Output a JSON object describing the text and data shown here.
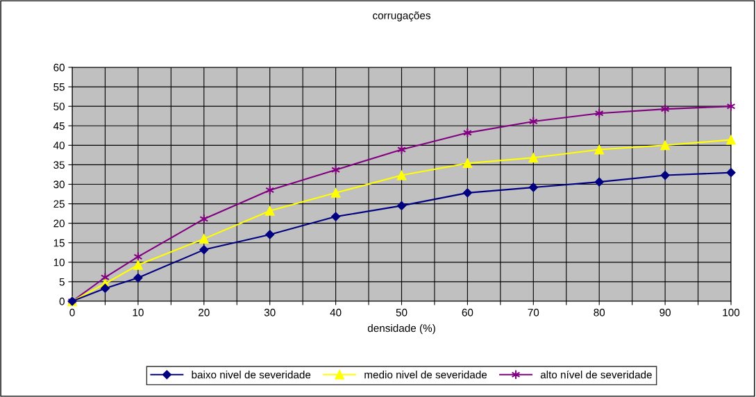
{
  "chart_data": {
    "type": "line",
    "title": "corrugações",
    "xlabel": "densidade (%)",
    "x": [
      0,
      5,
      10,
      20,
      30,
      40,
      50,
      60,
      70,
      80,
      90,
      100
    ],
    "series": [
      {
        "name": "baixo nivel de severidade",
        "color": "#000080",
        "marker": "diamond",
        "values": [
          0,
          3.3,
          6,
          13.2,
          17.1,
          21.7,
          24.5,
          27.8,
          29.2,
          30.6,
          32.3,
          33
        ]
      },
      {
        "name": "medio nivel de severidade",
        "color": "#ffff00",
        "marker": "triangle",
        "values": [
          0,
          4.5,
          9.3,
          16,
          23.2,
          27.8,
          32.3,
          35.4,
          36.8,
          38.9,
          40,
          41.4
        ]
      },
      {
        "name": "alto nível de severidade",
        "color": "#800080",
        "marker": "cross",
        "values": [
          0,
          6.1,
          11.4,
          21.1,
          28.5,
          33.7,
          38.9,
          43.2,
          46.1,
          48.2,
          49.3,
          50
        ]
      }
    ],
    "xlim": [
      0,
      100
    ],
    "xticks": [
      0,
      {
        "value": 5,
        "label": null
      },
      10,
      {
        "value": 15,
        "label": null
      },
      20,
      {
        "value": 25,
        "label": null
      },
      30,
      {
        "value": 35,
        "label": null
      },
      40,
      {
        "value": 45,
        "label": null
      },
      50,
      {
        "value": 55,
        "label": null
      },
      60,
      {
        "value": 65,
        "label": null
      },
      70,
      {
        "value": 75,
        "label": null
      },
      80,
      {
        "value": 85,
        "label": null
      },
      90,
      {
        "value": 95,
        "label": null
      },
      100
    ],
    "ylim": [
      0,
      60
    ],
    "yticks": [
      0,
      5,
      10,
      15,
      20,
      25,
      30,
      35,
      40,
      45,
      50,
      55,
      60
    ],
    "grid": true,
    "legend": "bottom",
    "line_style": "solid"
  }
}
